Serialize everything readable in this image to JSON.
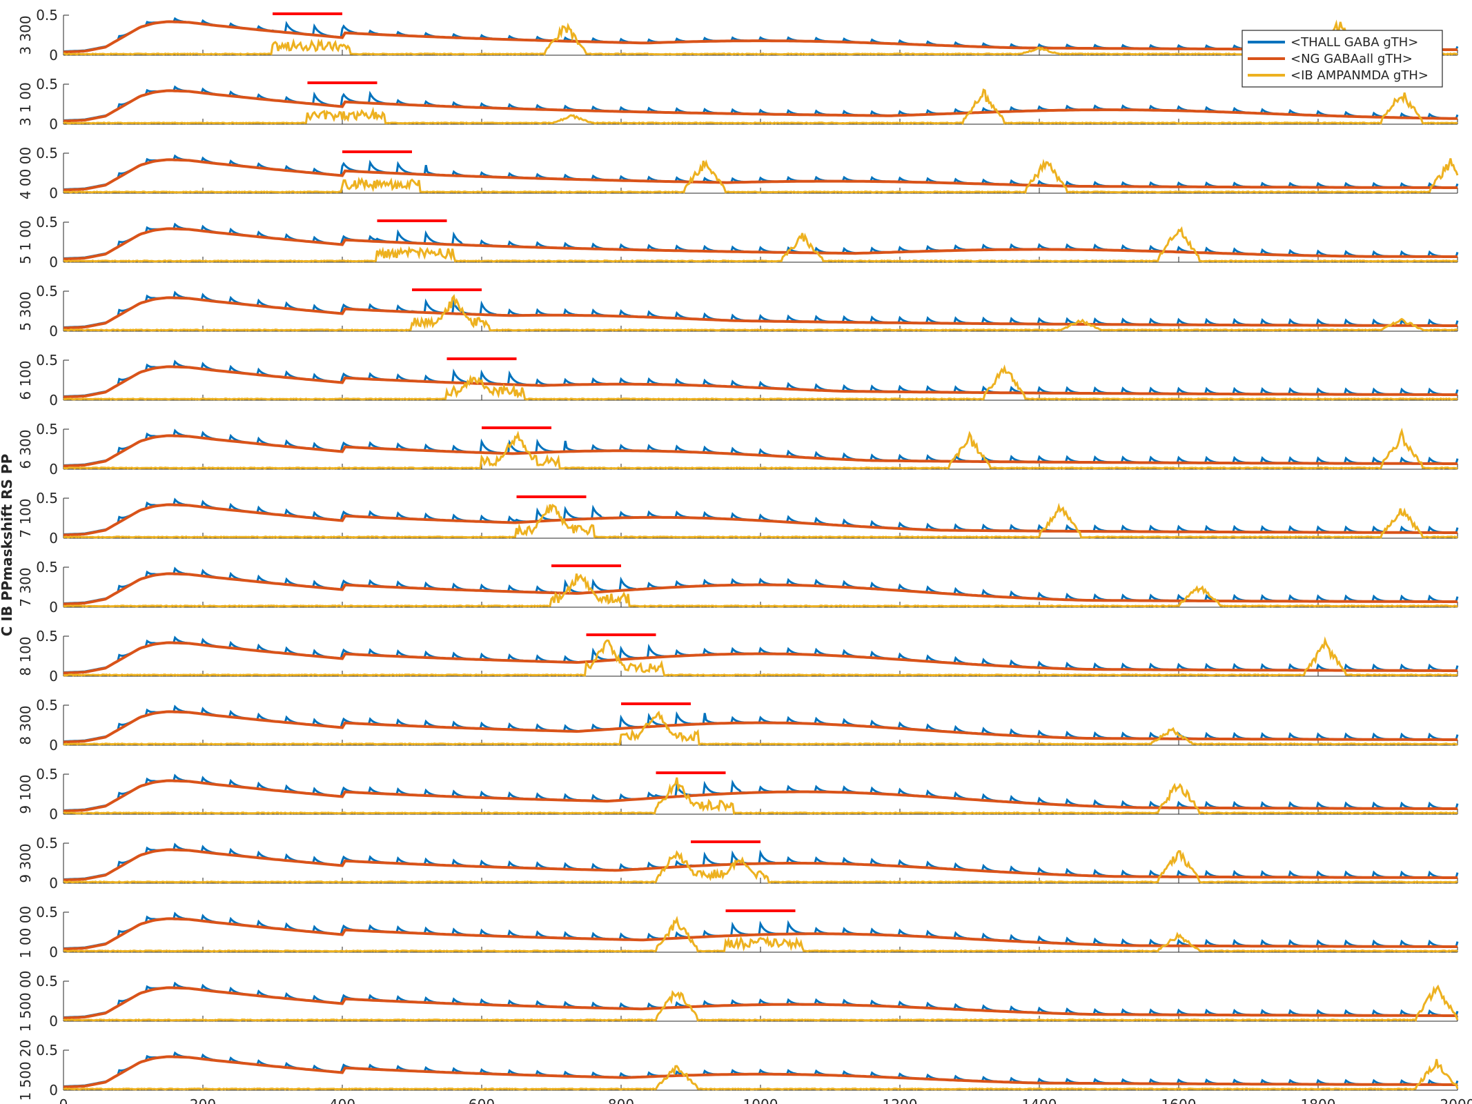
{
  "figure": {
    "ylabel": "C IB PPmaskshift RS PP",
    "panel_labels": [
      "3 300",
      "3 1 00",
      "4 00 00",
      "5 1 00",
      "5 300",
      "6 100",
      "6 300",
      "7 100",
      "7 300",
      "8 100",
      "8 300",
      "9 100",
      "9 300",
      "1 00 00",
      "1 500 00",
      "1 500 20"
    ]
  },
  "chart_data": {
    "type": "line",
    "xlim": [
      0,
      2000
    ],
    "ylim": [
      0,
      0.5
    ],
    "xticks": [
      "0",
      "200",
      "400",
      "600",
      "800",
      "1000",
      "1200",
      "1400",
      "1600",
      "1800",
      "2000"
    ],
    "yticks": [
      "0",
      "0.5"
    ],
    "legend": {
      "placement": "top-right",
      "entries": [
        "<THALL GABA gTH>",
        "<NG GABAall gTH>",
        "<IB AMPANMDA gTH>"
      ]
    },
    "colors": {
      "thall": "#0072BD",
      "ng": "#D95319",
      "ib": "#EDB120",
      "stimulus": "#FF0000"
    },
    "common_trace": {
      "name": "<NG GABAall gTH>",
      "x": [
        0,
        30,
        60,
        90,
        110,
        130,
        150,
        180,
        220,
        300,
        400
      ],
      "y": [
        0.04,
        0.05,
        0.1,
        0.25,
        0.35,
        0.4,
        0.42,
        0.41,
        0.37,
        0.3,
        0.22
      ]
    },
    "panels": [
      {
        "stim": [
          300,
          400
        ],
        "ib_bursts": [
          [
            720,
            0.42
          ],
          [
            1400,
            0.1
          ],
          [
            1830,
            0.45
          ]
        ],
        "slow_peak": [
          1000,
          0.2
        ],
        "thall_amp": 0.05
      },
      {
        "stim": [
          350,
          450
        ],
        "ib_bursts": [
          [
            730,
            0.12
          ],
          [
            1320,
            0.45
          ],
          [
            1920,
            0.45
          ]
        ],
        "slow_peak": [
          1500,
          0.2
        ],
        "thall_amp": 0.06
      },
      {
        "stim": [
          400,
          500
        ],
        "ib_bursts": [
          [
            920,
            0.45
          ],
          [
            1410,
            0.45
          ],
          [
            1990,
            0.45
          ]
        ],
        "slow_peak": [
          1100,
          0.17
        ],
        "thall_amp": 0.06
      },
      {
        "stim": [
          450,
          550
        ],
        "ib_bursts": [
          [
            1060,
            0.38
          ],
          [
            1600,
            0.48
          ]
        ],
        "slow_peak": [
          1400,
          0.18
        ],
        "thall_amp": 0.07
      },
      {
        "stim": [
          500,
          600
        ],
        "ib_bursts": [
          [
            560,
            0.45
          ],
          [
            1460,
            0.15
          ],
          [
            1920,
            0.17
          ]
        ],
        "slow_peak": [
          700,
          0.22
        ],
        "thall_amp": 0.08
      },
      {
        "stim": [
          550,
          650
        ],
        "ib_bursts": [
          [
            590,
            0.35
          ],
          [
            1350,
            0.48
          ]
        ],
        "slow_peak": [
          800,
          0.22
        ],
        "thall_amp": 0.08
      },
      {
        "stim": [
          600,
          700
        ],
        "ib_bursts": [
          [
            650,
            0.48
          ],
          [
            1300,
            0.45
          ],
          [
            1920,
            0.48
          ]
        ],
        "slow_peak": [
          800,
          0.25
        ],
        "thall_amp": 0.08
      },
      {
        "stim": [
          650,
          750
        ],
        "ib_bursts": [
          [
            700,
            0.48
          ],
          [
            1430,
            0.45
          ],
          [
            1920,
            0.4
          ]
        ],
        "slow_peak": [
          850,
          0.28
        ],
        "thall_amp": 0.08
      },
      {
        "stim": [
          700,
          800
        ],
        "ib_bursts": [
          [
            740,
            0.48
          ],
          [
            1630,
            0.3
          ]
        ],
        "slow_peak": [
          1000,
          0.3
        ],
        "thall_amp": 0.08
      },
      {
        "stim": [
          750,
          850
        ],
        "ib_bursts": [
          [
            780,
            0.48
          ],
          [
            1810,
            0.45
          ]
        ],
        "slow_peak": [
          1000,
          0.3
        ],
        "thall_amp": 0.08
      },
      {
        "stim": [
          800,
          900
        ],
        "ib_bursts": [
          [
            850,
            0.48
          ],
          [
            1590,
            0.22
          ]
        ],
        "slow_peak": [
          1000,
          0.3
        ],
        "thall_amp": 0.08
      },
      {
        "stim": [
          850,
          950
        ],
        "ib_bursts": [
          [
            880,
            0.48
          ],
          [
            1600,
            0.45
          ]
        ],
        "slow_peak": [
          1060,
          0.3
        ],
        "thall_amp": 0.08
      },
      {
        "stim": [
          900,
          1000
        ],
        "ib_bursts": [
          [
            880,
            0.48
          ],
          [
            970,
            0.35
          ],
          [
            1600,
            0.45
          ]
        ],
        "slow_peak": [
          1050,
          0.27
        ],
        "thall_amp": 0.08
      },
      {
        "stim": [
          950,
          1050
        ],
        "ib_bursts": [
          [
            880,
            0.45
          ],
          [
            1000,
            0.18
          ],
          [
            1600,
            0.25
          ]
        ],
        "slow_peak": [
          1080,
          0.25
        ],
        "thall_amp": 0.08
      },
      {
        "stim": null,
        "ib_bursts": [
          [
            880,
            0.45
          ],
          [
            1970,
            0.48
          ]
        ],
        "slow_peak": [
          1050,
          0.23
        ],
        "thall_amp": 0.07
      },
      {
        "stim": null,
        "ib_bursts": [
          [
            880,
            0.35
          ],
          [
            1970,
            0.4
          ]
        ],
        "slow_peak": [
          1000,
          0.22
        ],
        "thall_amp": 0.06
      }
    ]
  }
}
